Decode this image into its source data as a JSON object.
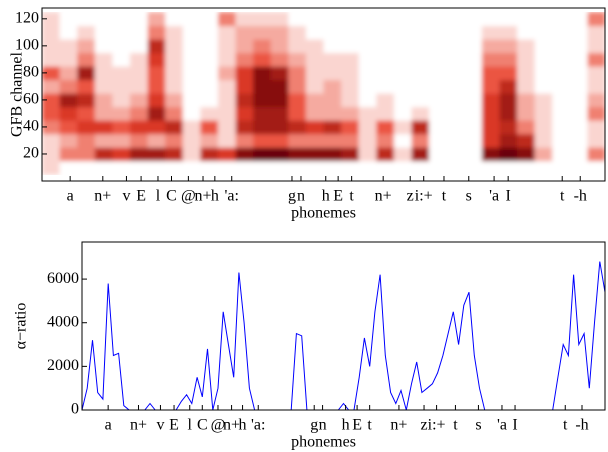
{
  "chart_data": [
    {
      "type": "heatmap",
      "ylabel": "GFB channel",
      "xlabel": "phonemes",
      "xlim": [
        0,
        100
      ],
      "ylim": [
        0,
        128
      ],
      "yticks": [
        20,
        40,
        60,
        80,
        100,
        120
      ],
      "xticks": [
        {
          "value": 5,
          "label": "a"
        },
        {
          "value": 10.8,
          "label": "n+"
        },
        {
          "value": 15,
          "label": "v"
        },
        {
          "value": 17.6,
          "label": "E"
        },
        {
          "value": 20.6,
          "label": "l"
        },
        {
          "value": 23,
          "label": "C"
        },
        {
          "value": 26,
          "label": "@"
        },
        {
          "value": 28.6,
          "label": "n+"
        },
        {
          "value": 30.7,
          "label": "h"
        },
        {
          "value": 33.7,
          "label": "'a:"
        },
        {
          "value": 44.4,
          "label": "g"
        },
        {
          "value": 46,
          "label": "n"
        },
        {
          "value": 50.4,
          "label": "h"
        },
        {
          "value": 52.6,
          "label": "E"
        },
        {
          "value": 55,
          "label": "t"
        },
        {
          "value": 60.6,
          "label": "n+"
        },
        {
          "value": 65.4,
          "label": "z"
        },
        {
          "value": 67.8,
          "label": "i:+"
        },
        {
          "value": 71.4,
          "label": "t"
        },
        {
          "value": 75.8,
          "label": "s"
        },
        {
          "value": 80.3,
          "label": "'a"
        },
        {
          "value": 82.8,
          "label": "I"
        },
        {
          "value": 92.4,
          "label": "t"
        },
        {
          "value": 95.6,
          "label": "-h"
        }
      ],
      "y": [
        10,
        20,
        30,
        40,
        50,
        60,
        70,
        80,
        90,
        100,
        110,
        120
      ],
      "zlim": [
        0,
        9
      ],
      "colormap": [
        "#ffffff",
        "#e8402a",
        "#6b0008"
      ],
      "z": [
        [
          1,
          0,
          0,
          0,
          0,
          0,
          0,
          0,
          0,
          0,
          0,
          0,
          0,
          0,
          0,
          0,
          0,
          0,
          0,
          0,
          0,
          0,
          0,
          0,
          0,
          0,
          0,
          0,
          0,
          0,
          0,
          0
        ],
        [
          1,
          3,
          3,
          6,
          5,
          7,
          7,
          6,
          1,
          6,
          5,
          8,
          9,
          9,
          8,
          8,
          8,
          7,
          1,
          6,
          1,
          7,
          0,
          0,
          0,
          8,
          9,
          8,
          2,
          0,
          0,
          3
        ],
        [
          1,
          2,
          3,
          2,
          2,
          3,
          2,
          3,
          1,
          2,
          1,
          3,
          4,
          4,
          3,
          3,
          3,
          3,
          1,
          3,
          0,
          3,
          0,
          0,
          0,
          5,
          7,
          6,
          1,
          0,
          0,
          1
        ],
        [
          3,
          4,
          5,
          5,
          4,
          5,
          5,
          6,
          1,
          4,
          1,
          6,
          7,
          7,
          6,
          5,
          6,
          4,
          1,
          4,
          1,
          6,
          0,
          0,
          0,
          5,
          6,
          3,
          1,
          0,
          0,
          1
        ],
        [
          4,
          5,
          4,
          2,
          2,
          3,
          7,
          3,
          0,
          1,
          1,
          5,
          7,
          7,
          4,
          2,
          2,
          2,
          1,
          1,
          0,
          1,
          0,
          0,
          0,
          5,
          7,
          2,
          1,
          0,
          0,
          3
        ],
        [
          4,
          7,
          6,
          2,
          1,
          2,
          5,
          2,
          0,
          0,
          1,
          6,
          8,
          8,
          4,
          2,
          2,
          1,
          0,
          1,
          0,
          0,
          0,
          0,
          0,
          5,
          7,
          2,
          1,
          0,
          0,
          2
        ],
        [
          2,
          3,
          4,
          1,
          1,
          1,
          4,
          1,
          0,
          0,
          1,
          5,
          8,
          8,
          3,
          1,
          2,
          1,
          0,
          0,
          0,
          0,
          0,
          0,
          0,
          4,
          6,
          1,
          0,
          0,
          0,
          1
        ],
        [
          4,
          2,
          7,
          1,
          1,
          1,
          4,
          1,
          0,
          0,
          2,
          5,
          8,
          7,
          3,
          1,
          1,
          1,
          0,
          0,
          0,
          0,
          0,
          0,
          0,
          4,
          4,
          1,
          0,
          0,
          0,
          1
        ],
        [
          1,
          1,
          3,
          1,
          0,
          1,
          5,
          1,
          0,
          0,
          1,
          3,
          4,
          3,
          2,
          1,
          1,
          1,
          0,
          0,
          0,
          0,
          0,
          0,
          0,
          3,
          3,
          1,
          0,
          0,
          0,
          3
        ],
        [
          1,
          1,
          2,
          0,
          0,
          0,
          6,
          1,
          0,
          0,
          1,
          2,
          3,
          2,
          1,
          1,
          0,
          0,
          0,
          0,
          0,
          0,
          0,
          0,
          0,
          2,
          2,
          1,
          0,
          0,
          0,
          1
        ],
        [
          1,
          0,
          1,
          0,
          0,
          0,
          3,
          1,
          0,
          0,
          1,
          2,
          2,
          2,
          1,
          0,
          0,
          0,
          0,
          0,
          0,
          0,
          0,
          0,
          0,
          1,
          1,
          0,
          0,
          0,
          0,
          1
        ],
        [
          1,
          0,
          0,
          0,
          0,
          0,
          2,
          0,
          0,
          0,
          3,
          1,
          1,
          1,
          0,
          0,
          0,
          0,
          0,
          0,
          0,
          0,
          0,
          0,
          0,
          0,
          0,
          0,
          0,
          0,
          0,
          3
        ]
      ]
    },
    {
      "type": "line",
      "ylabel": "α−ratio",
      "xlabel": "phonemes",
      "xlim": [
        0,
        100
      ],
      "ylim": [
        0,
        7700
      ],
      "yticks": [
        0,
        2000,
        4000,
        6000
      ],
      "xticks": [
        {
          "value": 5,
          "label": "a"
        },
        {
          "value": 10.8,
          "label": "n+"
        },
        {
          "value": 15,
          "label": "v"
        },
        {
          "value": 17.6,
          "label": "E"
        },
        {
          "value": 20.6,
          "label": "l"
        },
        {
          "value": 23,
          "label": "C"
        },
        {
          "value": 26,
          "label": "@"
        },
        {
          "value": 28.6,
          "label": "n+"
        },
        {
          "value": 30.7,
          "label": "h"
        },
        {
          "value": 33.7,
          "label": "'a:"
        },
        {
          "value": 44.4,
          "label": "g"
        },
        {
          "value": 46,
          "label": "n"
        },
        {
          "value": 50.4,
          "label": "h"
        },
        {
          "value": 52.6,
          "label": "E"
        },
        {
          "value": 55,
          "label": "t"
        },
        {
          "value": 60.6,
          "label": "n+"
        },
        {
          "value": 65.4,
          "label": "z"
        },
        {
          "value": 67.8,
          "label": "i:+"
        },
        {
          "value": 71.4,
          "label": "t"
        },
        {
          "value": 75.8,
          "label": "s"
        },
        {
          "value": 80.3,
          "label": "'a"
        },
        {
          "value": 82.8,
          "label": "I"
        },
        {
          "value": 92.4,
          "label": "t"
        },
        {
          "value": 95.6,
          "label": "-h"
        }
      ],
      "color": "#0000ff",
      "x": [
        0,
        1,
        2,
        3,
        4,
        5,
        6,
        7,
        8,
        9,
        10,
        11,
        12,
        13,
        14,
        15,
        16,
        17,
        18,
        19,
        20,
        21,
        22,
        23,
        24,
        25,
        26,
        27,
        28,
        29,
        30,
        31,
        32,
        33,
        34,
        35,
        36,
        37,
        38,
        39,
        40,
        41,
        42,
        43,
        44,
        45,
        46,
        47,
        48,
        49,
        50,
        51,
        52,
        53,
        54,
        55,
        56,
        57,
        58,
        59,
        60,
        61,
        62,
        63,
        64,
        65,
        66,
        67,
        68,
        69,
        70,
        71,
        72,
        73,
        74,
        75,
        76,
        77,
        78,
        79,
        80,
        81,
        82,
        83,
        84,
        85,
        86,
        87,
        88,
        89,
        90,
        91,
        92,
        93,
        94,
        95,
        96,
        97,
        98,
        99,
        100
      ],
      "values": [
        0,
        1000,
        3200,
        800,
        500,
        5800,
        2500,
        2600,
        200,
        0,
        0,
        0,
        0,
        300,
        0,
        0,
        0,
        0,
        0,
        400,
        700,
        300,
        1500,
        600,
        2800,
        0,
        1000,
        4500,
        3000,
        1500,
        6300,
        4000,
        1000,
        0,
        0,
        0,
        0,
        0,
        0,
        0,
        0,
        3500,
        3400,
        0,
        0,
        0,
        0,
        0,
        0,
        0,
        300,
        0,
        0,
        1500,
        3300,
        2000,
        4500,
        6200,
        2500,
        800,
        300,
        900,
        0,
        1200,
        2200,
        800,
        1000,
        1200,
        1700,
        2500,
        3500,
        4500,
        3000,
        4800,
        5400,
        2500,
        1000,
        0,
        0,
        0,
        0,
        0,
        0,
        0,
        0,
        0,
        0,
        0,
        0,
        0,
        0,
        1500,
        3000,
        2500,
        6200,
        3000,
        3500,
        1000,
        4000,
        6800,
        5400
      ]
    }
  ]
}
